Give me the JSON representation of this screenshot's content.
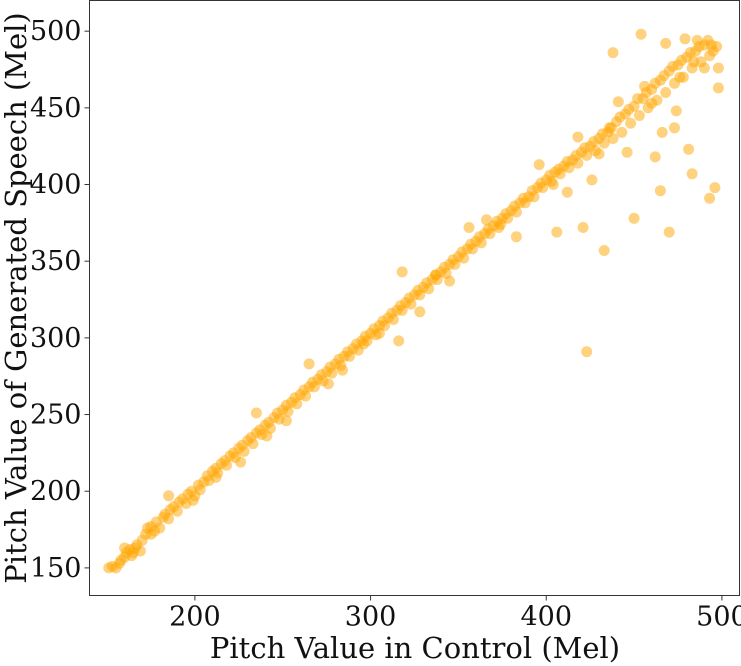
{
  "chart_data": {
    "type": "scatter",
    "title": "",
    "xlabel": "Pitch Value in Control (Mel)",
    "ylabel": "Pitch Value of Generated Speech (Mel)",
    "xlim": [
      140,
      510
    ],
    "ylim": [
      132,
      520
    ],
    "xticks": [
      200,
      300,
      400,
      500
    ],
    "yticks": [
      150,
      200,
      250,
      300,
      350,
      400,
      450,
      500
    ],
    "marker_color": "#FFA500",
    "marker_opacity": 0.5,
    "grid": false,
    "legend": "none",
    "series": [
      {
        "points": [
          [
            151,
            150
          ],
          [
            153,
            151
          ],
          [
            155,
            150
          ],
          [
            157,
            153
          ],
          [
            158,
            155
          ],
          [
            160,
            157
          ],
          [
            161,
            160
          ],
          [
            163,
            162
          ],
          [
            164,
            158
          ],
          [
            166,
            163
          ],
          [
            167,
            165
          ],
          [
            169,
            161
          ],
          [
            170,
            168
          ],
          [
            172,
            172
          ],
          [
            173,
            176
          ],
          [
            175,
            177
          ],
          [
            177,
            174
          ],
          [
            178,
            180
          ],
          [
            180,
            176
          ],
          [
            182,
            183
          ],
          [
            183,
            185
          ],
          [
            185,
            182
          ],
          [
            186,
            188
          ],
          [
            188,
            190
          ],
          [
            190,
            187
          ],
          [
            191,
            193
          ],
          [
            193,
            195
          ],
          [
            195,
            192
          ],
          [
            196,
            198
          ],
          [
            198,
            200
          ],
          [
            200,
            197
          ],
          [
            202,
            204
          ],
          [
            203,
            201
          ],
          [
            205,
            206
          ],
          [
            207,
            210
          ],
          [
            208,
            207
          ],
          [
            210,
            213
          ],
          [
            212,
            215
          ],
          [
            213,
            212
          ],
          [
            215,
            218
          ],
          [
            217,
            220
          ],
          [
            218,
            217
          ],
          [
            220,
            223
          ],
          [
            222,
            225
          ],
          [
            223,
            222
          ],
          [
            225,
            228
          ],
          [
            227,
            230
          ],
          [
            228,
            226
          ],
          [
            230,
            233
          ],
          [
            232,
            235
          ],
          [
            233,
            231
          ],
          [
            235,
            238
          ],
          [
            237,
            240
          ],
          [
            238,
            237
          ],
          [
            240,
            243
          ],
          [
            242,
            245
          ],
          [
            243,
            241
          ],
          [
            245,
            248
          ],
          [
            247,
            251
          ],
          [
            248,
            247
          ],
          [
            250,
            253
          ],
          [
            252,
            256
          ],
          [
            253,
            252
          ],
          [
            255,
            258
          ],
          [
            257,
            261
          ],
          [
            258,
            257
          ],
          [
            260,
            263
          ],
          [
            262,
            266
          ],
          [
            263,
            262
          ],
          [
            265,
            268
          ],
          [
            267,
            271
          ],
          [
            268,
            268
          ],
          [
            270,
            273
          ],
          [
            272,
            276
          ],
          [
            273,
            272
          ],
          [
            275,
            278
          ],
          [
            277,
            281
          ],
          [
            278,
            277
          ],
          [
            280,
            283
          ],
          [
            282,
            286
          ],
          [
            283,
            282
          ],
          [
            285,
            288
          ],
          [
            287,
            291
          ],
          [
            288,
            288
          ],
          [
            290,
            293
          ],
          [
            292,
            296
          ],
          [
            293,
            292
          ],
          [
            295,
            298
          ],
          [
            297,
            301
          ],
          [
            298,
            298
          ],
          [
            300,
            303
          ],
          [
            302,
            306
          ],
          [
            303,
            302
          ],
          [
            305,
            308
          ],
          [
            307,
            311
          ],
          [
            308,
            308
          ],
          [
            310,
            313
          ],
          [
            312,
            316
          ],
          [
            313,
            312
          ],
          [
            315,
            318
          ],
          [
            317,
            321
          ],
          [
            318,
            318
          ],
          [
            320,
            323
          ],
          [
            322,
            326
          ],
          [
            323,
            322
          ],
          [
            325,
            328
          ],
          [
            327,
            331
          ],
          [
            328,
            328
          ],
          [
            330,
            333
          ],
          [
            332,
            336
          ],
          [
            333,
            332
          ],
          [
            335,
            338
          ],
          [
            337,
            341
          ],
          [
            338,
            338
          ],
          [
            340,
            343
          ],
          [
            342,
            346
          ],
          [
            343,
            342
          ],
          [
            345,
            348
          ],
          [
            347,
            351
          ],
          [
            348,
            348
          ],
          [
            350,
            353
          ],
          [
            352,
            356
          ],
          [
            353,
            352
          ],
          [
            355,
            358
          ],
          [
            357,
            361
          ],
          [
            358,
            358
          ],
          [
            360,
            363
          ],
          [
            362,
            366
          ],
          [
            363,
            362
          ],
          [
            365,
            368
          ],
          [
            367,
            371
          ],
          [
            368,
            368
          ],
          [
            370,
            373
          ],
          [
            372,
            376
          ],
          [
            373,
            372
          ],
          [
            375,
            378
          ],
          [
            377,
            381
          ],
          [
            378,
            378
          ],
          [
            380,
            383
          ],
          [
            382,
            386
          ],
          [
            383,
            382
          ],
          [
            385,
            388
          ],
          [
            387,
            391
          ],
          [
            388,
            388
          ],
          [
            390,
            392
          ],
          [
            392,
            396
          ],
          [
            393,
            392
          ],
          [
            395,
            398
          ],
          [
            397,
            401
          ],
          [
            398,
            398
          ],
          [
            400,
            403
          ],
          [
            402,
            406
          ],
          [
            403,
            402
          ],
          [
            405,
            408
          ],
          [
            407,
            410
          ],
          [
            408,
            407
          ],
          [
            410,
            412
          ],
          [
            412,
            415
          ],
          [
            413,
            411
          ],
          [
            415,
            416
          ],
          [
            417,
            419
          ],
          [
            418,
            414
          ],
          [
            420,
            421
          ],
          [
            422,
            424
          ],
          [
            423,
            419
          ],
          [
            425,
            425
          ],
          [
            427,
            428
          ],
          [
            428,
            422
          ],
          [
            430,
            430
          ],
          [
            432,
            433
          ],
          [
            433,
            427
          ],
          [
            435,
            434
          ],
          [
            437,
            437
          ],
          [
            438,
            430
          ],
          [
            440,
            441
          ],
          [
            442,
            444
          ],
          [
            443,
            434
          ],
          [
            445,
            446
          ],
          [
            447,
            449
          ],
          [
            448,
            440
          ],
          [
            450,
            451
          ],
          [
            452,
            456
          ],
          [
            453,
            445
          ],
          [
            455,
            456
          ],
          [
            457,
            460
          ],
          [
            458,
            450
          ],
          [
            460,
            462
          ],
          [
            462,
            466
          ],
          [
            463,
            455
          ],
          [
            465,
            468
          ],
          [
            467,
            471
          ],
          [
            468,
            460
          ],
          [
            470,
            474
          ],
          [
            472,
            477
          ],
          [
            473,
            466
          ],
          [
            475,
            478
          ],
          [
            477,
            481
          ],
          [
            478,
            470
          ],
          [
            480,
            483
          ],
          [
            482,
            486
          ],
          [
            483,
            476
          ],
          [
            485,
            487
          ],
          [
            487,
            490
          ],
          [
            488,
            480
          ],
          [
            490,
            491
          ],
          [
            492,
            494
          ],
          [
            493,
            484
          ],
          [
            495,
            487
          ],
          [
            497,
            490
          ],
          [
            498,
            476
          ],
          [
            160,
            163
          ],
          [
            165,
            160
          ],
          [
            175,
            172
          ],
          [
            185,
            197
          ],
          [
            199,
            194
          ],
          [
            212,
            209
          ],
          [
            226,
            219
          ],
          [
            235,
            251
          ],
          [
            241,
            236
          ],
          [
            252,
            246
          ],
          [
            265,
            283
          ],
          [
            276,
            270
          ],
          [
            284,
            279
          ],
          [
            296,
            296
          ],
          [
            305,
            303
          ],
          [
            316,
            298
          ],
          [
            318,
            343
          ],
          [
            328,
            317
          ],
          [
            337,
            341
          ],
          [
            345,
            337
          ],
          [
            356,
            372
          ],
          [
            366,
            377
          ],
          [
            374,
            374
          ],
          [
            383,
            366
          ],
          [
            396,
            413
          ],
          [
            404,
            400
          ],
          [
            406,
            369
          ],
          [
            412,
            395
          ],
          [
            418,
            431
          ],
          [
            421,
            372
          ],
          [
            423,
            291
          ],
          [
            426,
            403
          ],
          [
            430,
            420
          ],
          [
            433,
            357
          ],
          [
            436,
            437
          ],
          [
            438,
            486
          ],
          [
            441,
            454
          ],
          [
            446,
            421
          ],
          [
            450,
            378
          ],
          [
            454,
            498
          ],
          [
            456,
            464
          ],
          [
            460,
            453
          ],
          [
            462,
            418
          ],
          [
            465,
            396
          ],
          [
            468,
            492
          ],
          [
            470,
            369
          ],
          [
            473,
            437
          ],
          [
            476,
            470
          ],
          [
            479,
            495
          ],
          [
            481,
            423
          ],
          [
            483,
            407
          ],
          [
            486,
            494
          ],
          [
            490,
            476
          ],
          [
            493,
            391
          ],
          [
            496,
            398
          ],
          [
            498,
            463
          ],
          [
            494,
            491
          ],
          [
            484,
            480
          ],
          [
            474,
            448
          ],
          [
            466,
            434
          ]
        ]
      }
    ]
  }
}
